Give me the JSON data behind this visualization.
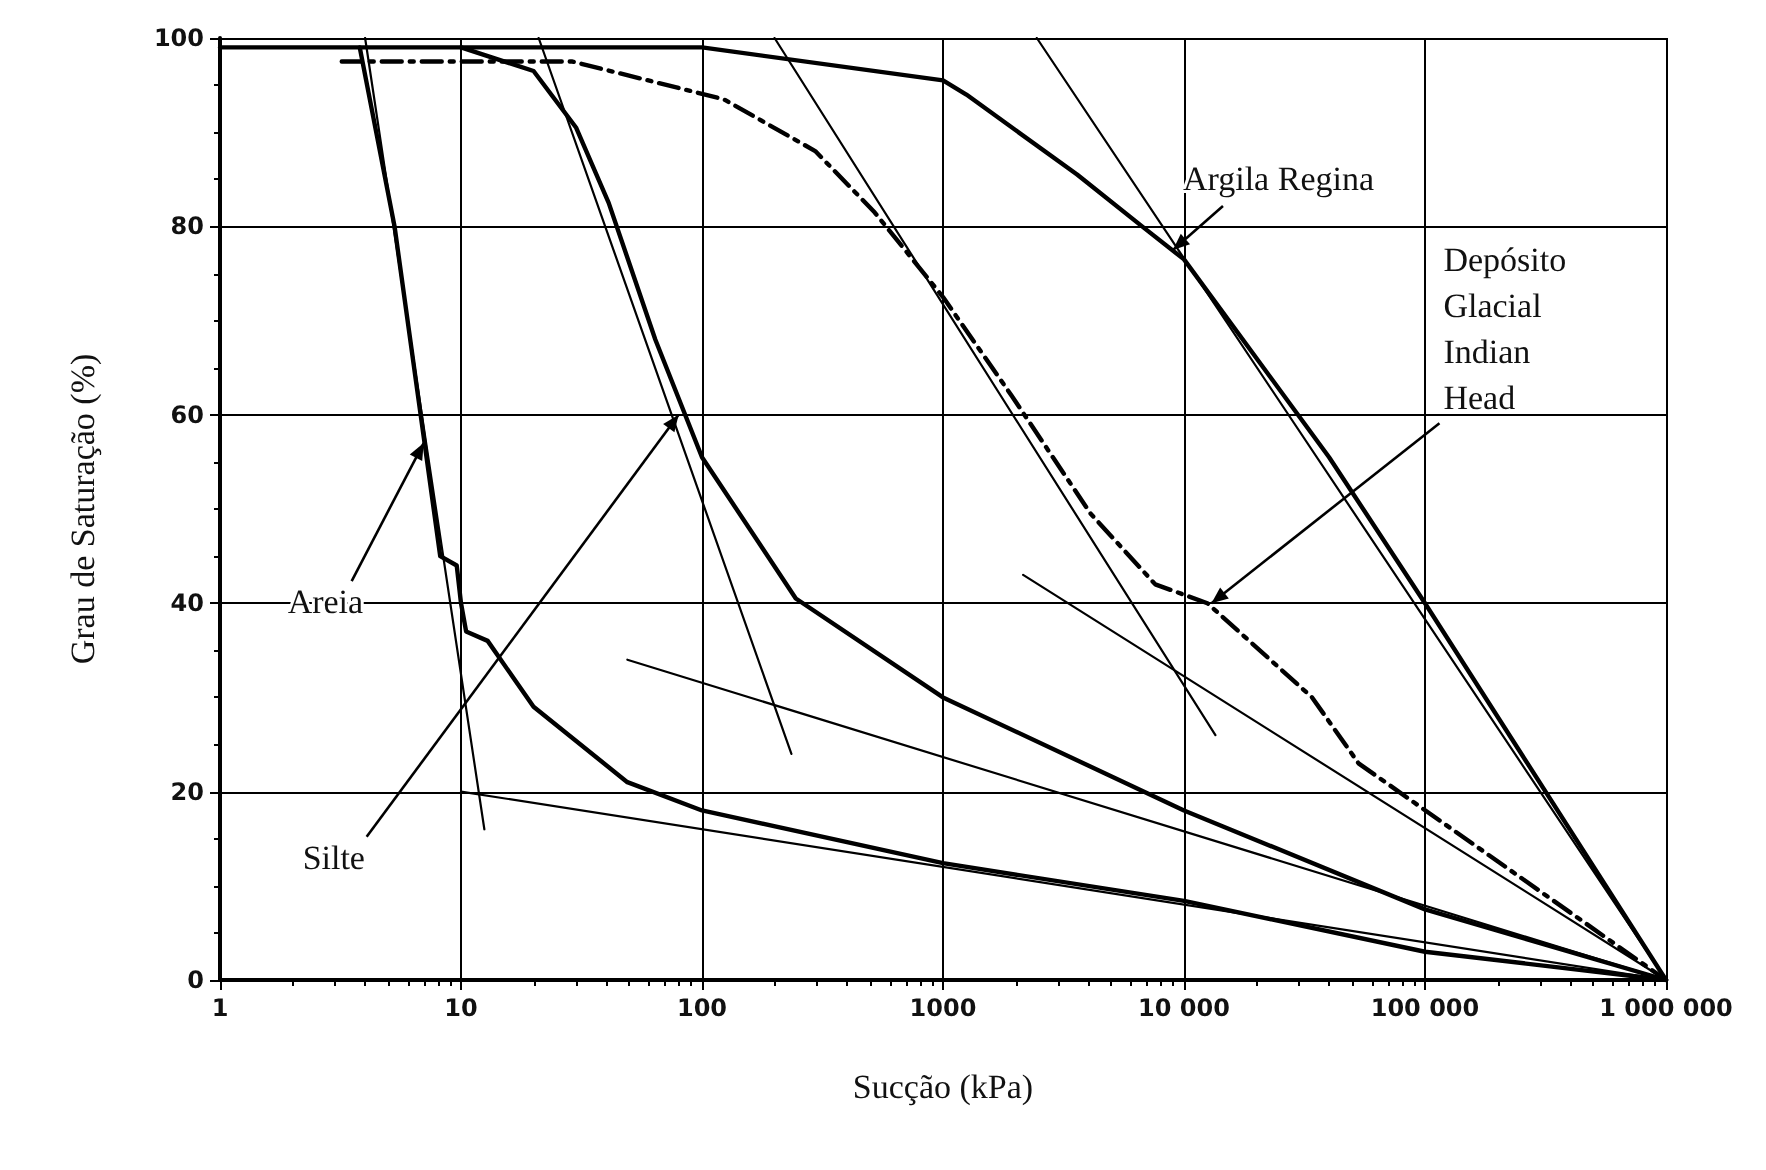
{
  "chart_data": {
    "type": "line",
    "xlabel": "Sucção (kPa)",
    "ylabel": "Grau de Saturação (%)",
    "log": "x",
    "xlim": [
      1,
      1000000
    ],
    "ylim": [
      0,
      100
    ],
    "xticks": [
      1,
      10,
      100,
      1000,
      {
        "value": 10000,
        "label": "10 000"
      },
      {
        "value": 100000,
        "label": "100 000"
      },
      {
        "value": 1000000,
        "label": "1 000 000"
      }
    ],
    "yticks": [
      0,
      20,
      40,
      60,
      80,
      100
    ],
    "grid": true,
    "marker": "none",
    "series": [
      {
        "color": "#000000",
        "x": [
          3.8,
          5.3,
          6.8,
          8.2,
          9.6,
          10,
          10.5,
          12.9,
          20,
          49,
          100,
          1000,
          10000,
          100000,
          1000000
        ],
        "values": [
          99,
          80,
          60,
          45,
          44,
          40,
          37,
          36,
          29,
          21,
          18,
          12.4,
          8.4,
          3,
          0
        ]
      },
      {
        "color": "#000000",
        "x": [
          10,
          20,
          30,
          41,
          64,
          100,
          245,
          1000,
          10000,
          100000,
          1000000
        ],
        "values": [
          99,
          96.5,
          90.5,
          82.5,
          68,
          55.5,
          40.5,
          30,
          18,
          7.5,
          0
        ]
      },
      {
        "color": "#000000",
        "line_style": "dashed",
        "x": [
          3.2,
          29,
          123,
          295,
          520,
          1000,
          1930,
          4100,
          7600,
          12500,
          34000,
          53000,
          1000000
        ],
        "values": [
          97.5,
          97.5,
          93.5,
          88,
          81.5,
          72.5,
          62,
          49.5,
          42,
          40,
          30,
          23,
          0
        ]
      },
      {
        "color": "#000000",
        "x": [
          1,
          100,
          1000,
          1250,
          3600,
          6700,
          10000,
          40000,
          100000,
          1000000
        ],
        "values": [
          99,
          99,
          95.5,
          94,
          85.5,
          80,
          76.5,
          55.5,
          40,
          0
        ]
      },
      {
        "color": "#000000",
        "x": [
          4,
          12.5
        ],
        "values": [
          100,
          16
        ]
      },
      {
        "color": "#000000",
        "x": [
          10,
          1000000
        ],
        "values": [
          20,
          0
        ]
      },
      {
        "color": "#000000",
        "x": [
          21,
          235
        ],
        "values": [
          100,
          24
        ]
      },
      {
        "color": "#000000",
        "x": [
          49,
          1000000
        ],
        "values": [
          34,
          0
        ]
      },
      {
        "color": "#000000",
        "x": [
          200,
          13500
        ],
        "values": [
          100,
          26
        ]
      },
      {
        "color": "#000000",
        "x": [
          2150,
          1000000
        ],
        "values": [
          43,
          0
        ]
      },
      {
        "color": "#000000",
        "x": [
          2450,
          1000000
        ],
        "values": [
          100,
          0
        ]
      }
    ],
    "annotations": [
      {
        "text": "Areia",
        "x": 7,
        "y": 57
      },
      {
        "text": "Silte",
        "x": 80,
        "y": 60
      },
      {
        "text": "Argila Regina",
        "x": 9000,
        "y": 77.5
      },
      {
        "text": "Depósito Glacial Indian Head",
        "x": 13000,
        "y": 40
      }
    ]
  }
}
